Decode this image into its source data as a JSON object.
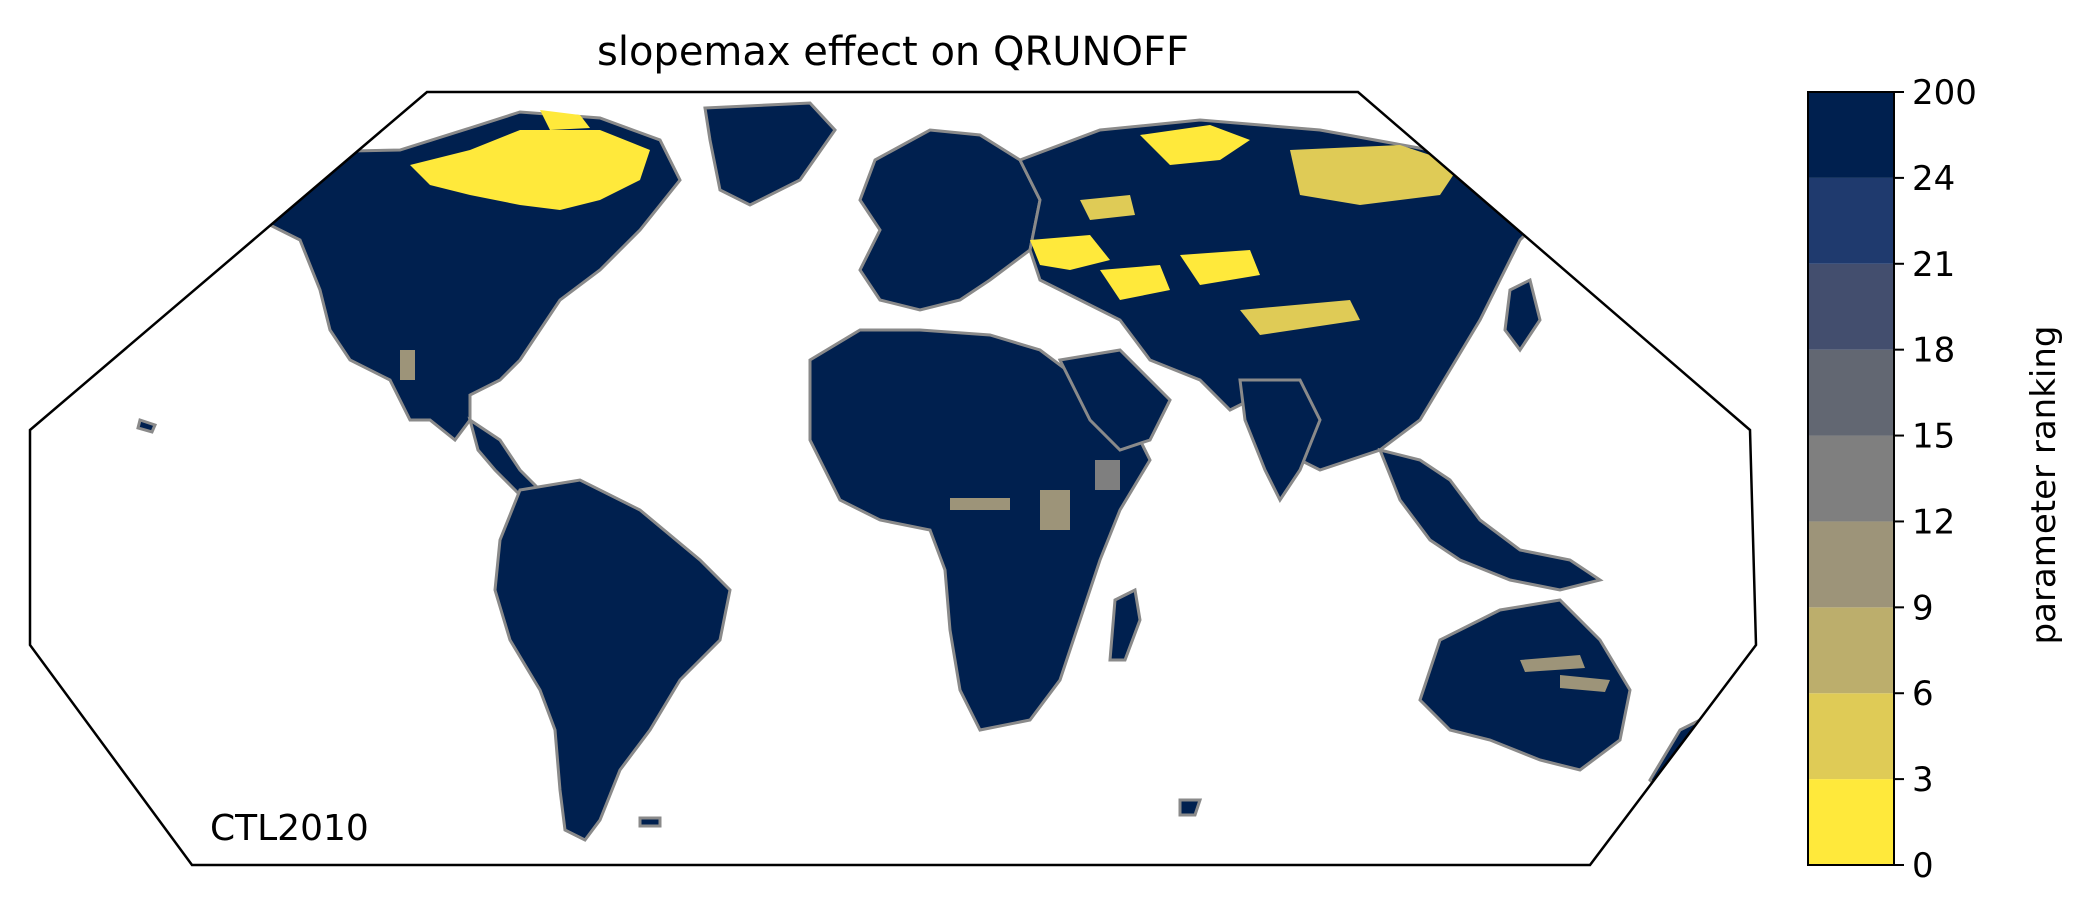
{
  "title": "slopemax effect on QRUNOFF",
  "annotation": "CTL2010",
  "colorbar": {
    "label": "parameter ranking",
    "ticks": [
      "0",
      "3",
      "6",
      "9",
      "12",
      "15",
      "18",
      "21",
      "24",
      "200"
    ],
    "bins": [
      {
        "from": 0,
        "to": 3,
        "color": "#ffe93b"
      },
      {
        "from": 3,
        "to": 6,
        "color": "#dfcb56"
      },
      {
        "from": 6,
        "to": 9,
        "color": "#bcae6c"
      },
      {
        "from": 9,
        "to": 12,
        "color": "#9d9479"
      },
      {
        "from": 12,
        "to": 15,
        "color": "#7f7f7f"
      },
      {
        "from": 15,
        "to": 18,
        "color": "#626772"
      },
      {
        "from": 18,
        "to": 21,
        "color": "#434e6e"
      },
      {
        "from": 21,
        "to": 24,
        "color": "#1f3a6e"
      },
      {
        "from": 24,
        "to": 200,
        "color": "#00204f"
      }
    ]
  },
  "map": {
    "projection": "Robinson",
    "land_color": "#00204f",
    "coastline_color": "#8a8a8a",
    "low_rank_color": "#ffe93b",
    "mid_rank_color": "#dfcb56",
    "grey_rank_color": "#9d9479"
  }
}
